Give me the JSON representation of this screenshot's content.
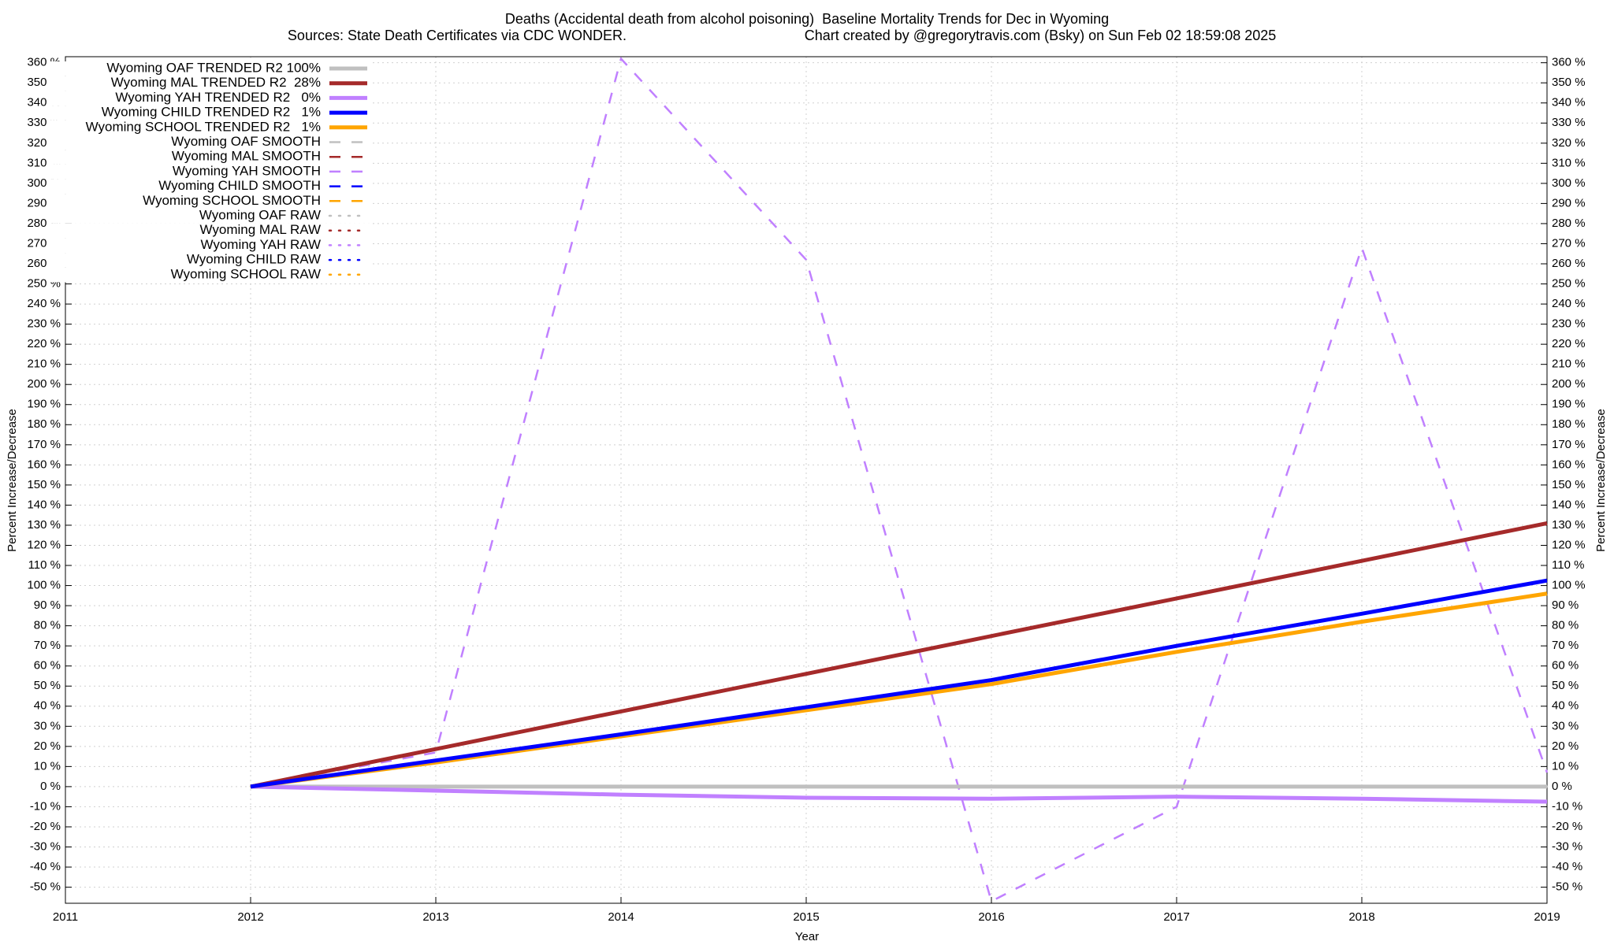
{
  "chart_data": {
    "type": "line",
    "title": "Deaths (Accidental death from alcohol poisoning)  Baseline Mortality Trends for Dec in Wyoming",
    "subtitle": "Sources: State Death Certificates via CDC WONDER.",
    "credit": "Chart created by @gregorytravis.com (Bsky) on Sun Feb 02 18:59:08 2025",
    "x_label": "Year",
    "y_label": "Percent Increase/Decrease",
    "x": [
      2012,
      2013,
      2014,
      2015,
      2016,
      2017,
      2018,
      2019
    ],
    "xlim": [
      2011,
      2019
    ],
    "xticks": [
      2011,
      2012,
      2013,
      2014,
      2015,
      2016,
      2017,
      2018,
      2019
    ],
    "ylim": [
      -58,
      363
    ],
    "yticks": [
      {
        "value": -50,
        "label": "-50 %"
      },
      {
        "value": -40,
        "label": "-40 %"
      },
      {
        "value": -30,
        "label": "-30 %"
      },
      {
        "value": -20,
        "label": "-20 %"
      },
      {
        "value": -10,
        "label": "-10 %"
      },
      {
        "value": 0,
        "label": "0 %"
      },
      {
        "value": 10,
        "label": "10 %"
      },
      {
        "value": 20,
        "label": "20 %"
      },
      {
        "value": 30,
        "label": "30 %"
      },
      {
        "value": 40,
        "label": "40 %"
      },
      {
        "value": 50,
        "label": "50 %"
      },
      {
        "value": 60,
        "label": "60 %"
      },
      {
        "value": 70,
        "label": "70 %"
      },
      {
        "value": 80,
        "label": "80 %"
      },
      {
        "value": 90,
        "label": "90 %"
      },
      {
        "value": 100,
        "label": "100 %"
      },
      {
        "value": 110,
        "label": "110 %"
      },
      {
        "value": 120,
        "label": "120 %"
      },
      {
        "value": 130,
        "label": "130 %"
      },
      {
        "value": 140,
        "label": "140 %"
      },
      {
        "value": 150,
        "label": "150 %"
      },
      {
        "value": 160,
        "label": "160 %"
      },
      {
        "value": 170,
        "label": "170 %"
      },
      {
        "value": 180,
        "label": "180 %"
      },
      {
        "value": 190,
        "label": "190 %"
      },
      {
        "value": 200,
        "label": "200 %"
      },
      {
        "value": 210,
        "label": "210 %"
      },
      {
        "value": 220,
        "label": "220 %"
      },
      {
        "value": 230,
        "label": "230 %"
      },
      {
        "value": 240,
        "label": "240 %"
      },
      {
        "value": 250,
        "label": "250 %"
      },
      {
        "value": 260,
        "label": "260 %"
      },
      {
        "value": 270,
        "label": "270 %"
      },
      {
        "value": 280,
        "label": "280 %"
      },
      {
        "value": 290,
        "label": "290 %"
      },
      {
        "value": 300,
        "label": "300 %"
      },
      {
        "value": 310,
        "label": "310 %"
      },
      {
        "value": 320,
        "label": "320 %"
      },
      {
        "value": 330,
        "label": "330 %"
      },
      {
        "value": 340,
        "label": "340 %"
      },
      {
        "value": 350,
        "label": "350 %"
      },
      {
        "value": 360,
        "label": "360 %"
      }
    ],
    "grid": true,
    "legend": "top-left",
    "series": [
      {
        "name": "Wyoming OAF TRENDED R2 100%",
        "color": "#c0c0c0",
        "style": "solid",
        "width": 5,
        "values": [
          0,
          0,
          0,
          0,
          0,
          0,
          0,
          0
        ]
      },
      {
        "name": "Wyoming MAL TRENDED R2  28%",
        "color": "#a52a2a",
        "style": "solid",
        "width": 5,
        "values": [
          0,
          18.7,
          37.4,
          56.1,
          74.9,
          93.6,
          112.3,
          131
        ]
      },
      {
        "name": "Wyoming YAH TRENDED R2   0%",
        "color": "#c080ff",
        "style": "solid",
        "width": 5,
        "values": [
          0,
          -2,
          -4,
          -5.5,
          -6,
          -5,
          -6,
          -7.5
        ]
      },
      {
        "name": "Wyoming CHILD TRENDED R2   1%",
        "color": "#0000ff",
        "style": "solid",
        "width": 5,
        "values": [
          0,
          13,
          26,
          39.5,
          53,
          70,
          86,
          102.5
        ]
      },
      {
        "name": "Wyoming SCHOOL TRENDED R2   1%",
        "color": "#ffa500",
        "style": "solid",
        "width": 5,
        "values": [
          0,
          12,
          25,
          38,
          51,
          67,
          82,
          96
        ]
      },
      {
        "name": "Wyoming OAF SMOOTH",
        "color": "#c0c0c0",
        "style": "dashed",
        "width": 2.5,
        "values": [
          0,
          0,
          0,
          0,
          0,
          0,
          0,
          0
        ]
      },
      {
        "name": "Wyoming MAL SMOOTH",
        "color": "#a52a2a",
        "style": "dashed",
        "width": 2.5,
        "values": [
          null,
          null,
          null,
          null,
          null,
          null,
          null,
          null
        ]
      },
      {
        "name": "Wyoming YAH SMOOTH",
        "color": "#c080ff",
        "style": "dashed",
        "width": 2.5,
        "values": [
          0,
          17,
          362,
          262,
          -57,
          -10,
          268,
          7
        ]
      },
      {
        "name": "Wyoming CHILD SMOOTH",
        "color": "#0000ff",
        "style": "dashed",
        "width": 2.5,
        "values": [
          null,
          null,
          null,
          null,
          null,
          null,
          null,
          null
        ]
      },
      {
        "name": "Wyoming SCHOOL SMOOTH",
        "color": "#ffa500",
        "style": "dashed",
        "width": 2.5,
        "values": [
          null,
          null,
          null,
          null,
          null,
          null,
          null,
          null
        ]
      },
      {
        "name": "Wyoming OAF RAW",
        "color": "#c0c0c0",
        "style": "dotted",
        "width": 2.5,
        "values": [
          0,
          0,
          0,
          0,
          0,
          0,
          0,
          0
        ]
      },
      {
        "name": "Wyoming MAL RAW",
        "color": "#a52a2a",
        "style": "dotted",
        "width": 2.5,
        "values": [
          null,
          null,
          null,
          null,
          null,
          null,
          null,
          null
        ]
      },
      {
        "name": "Wyoming YAH RAW",
        "color": "#c080ff",
        "style": "dotted",
        "width": 2.5,
        "values": [
          null,
          null,
          null,
          null,
          null,
          null,
          null,
          null
        ]
      },
      {
        "name": "Wyoming CHILD RAW",
        "color": "#0000ff",
        "style": "dotted",
        "width": 2.5,
        "values": [
          null,
          null,
          null,
          null,
          null,
          null,
          null,
          null
        ]
      },
      {
        "name": "Wyoming SCHOOL RAW",
        "color": "#ffa500",
        "style": "dotted",
        "width": 2.5,
        "values": [
          null,
          null,
          null,
          null,
          null,
          null,
          null,
          null
        ]
      }
    ]
  }
}
